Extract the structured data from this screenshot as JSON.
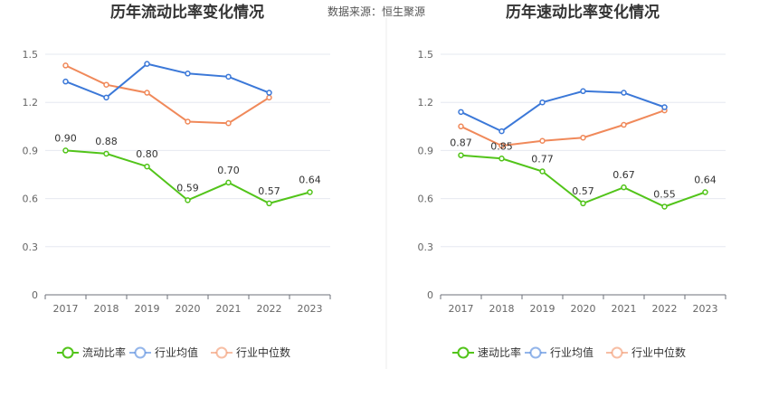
{
  "source_label": "数据来源：恒生聚源",
  "colors": {
    "primary": "#52c41a",
    "industry_avg": "#3b78d8",
    "industry_median": "#f0895a"
  },
  "chart_data": [
    {
      "type": "line",
      "title": "历年流动比率变化情况",
      "categories": [
        "2017",
        "2018",
        "2019",
        "2020",
        "2021",
        "2022",
        "2023"
      ],
      "yticks": [
        "0",
        "0.3",
        "0.6",
        "0.9",
        "1.2",
        "1.5"
      ],
      "ylim": [
        0,
        1.5
      ],
      "series": [
        {
          "name": "流动比率",
          "values": [
            0.9,
            0.88,
            0.8,
            0.59,
            0.7,
            0.57,
            0.64
          ],
          "labels": [
            "0.90",
            "0.88",
            "0.80",
            "0.59",
            "0.70",
            "0.57",
            "0.64"
          ]
        },
        {
          "name": "行业均值",
          "values": [
            1.33,
            1.23,
            1.44,
            1.38,
            1.36,
            1.26,
            null
          ]
        },
        {
          "name": "行业中位数",
          "values": [
            1.43,
            1.31,
            1.26,
            1.08,
            1.07,
            1.23,
            null
          ]
        }
      ]
    },
    {
      "type": "line",
      "title": "历年速动比率变化情况",
      "categories": [
        "2017",
        "2018",
        "2019",
        "2020",
        "2021",
        "2022",
        "2023"
      ],
      "yticks": [
        "0",
        "0.3",
        "0.6",
        "0.9",
        "1.2",
        "1.5"
      ],
      "ylim": [
        0,
        1.5
      ],
      "series": [
        {
          "name": "速动比率",
          "values": [
            0.87,
            0.85,
            0.77,
            0.57,
            0.67,
            0.55,
            0.64
          ],
          "labels": [
            "0.87",
            "0.85",
            "0.77",
            "0.57",
            "0.67",
            "0.55",
            "0.64"
          ]
        },
        {
          "name": "行业均值",
          "values": [
            1.14,
            1.02,
            1.2,
            1.27,
            1.26,
            1.17,
            null
          ]
        },
        {
          "name": "行业中位数",
          "values": [
            1.05,
            0.93,
            0.96,
            0.98,
            1.06,
            1.15,
            null
          ]
        }
      ]
    }
  ]
}
